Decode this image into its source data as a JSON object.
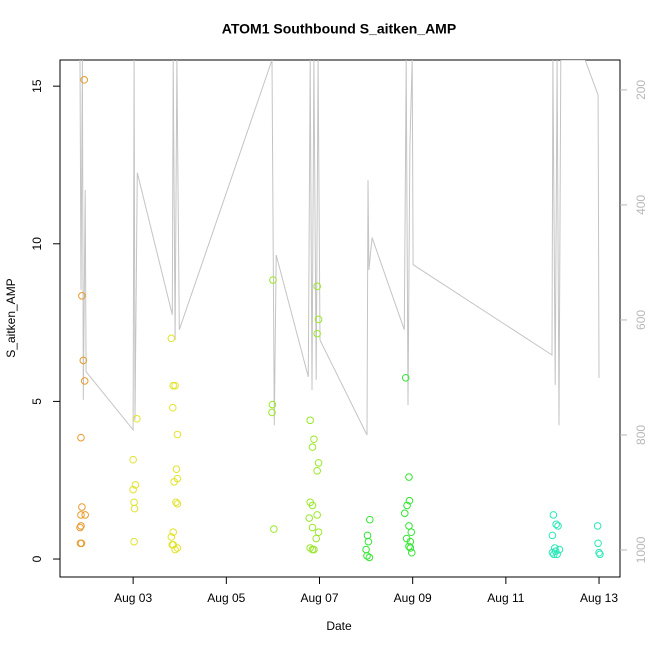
{
  "chart_data": {
    "type": "scatter",
    "title": "ATOM1 Southbound S_aitken_AMP",
    "xlabel": "Date",
    "ylabel": "S_aitken_AMP",
    "xlim": [
      1.43,
      13.45
    ],
    "ylim": [
      -0.57,
      15.83
    ],
    "y2lim": [
      1047,
      148
    ],
    "xticks": [
      {
        "value": 3,
        "label": "Aug 03"
      },
      {
        "value": 5,
        "label": "Aug 05"
      },
      {
        "value": 7,
        "label": "Aug 07"
      },
      {
        "value": 9,
        "label": "Aug 09"
      },
      {
        "value": 11,
        "label": "Aug 11"
      },
      {
        "value": 13,
        "label": "Aug 13"
      }
    ],
    "yticks": [
      0,
      5,
      10,
      15
    ],
    "y2ticks": [
      200,
      400,
      600,
      800,
      1000
    ],
    "series": [
      {
        "color": "#e89a2c",
        "x": [
          1.95,
          1.9,
          1.93,
          1.96,
          1.88,
          1.9,
          1.88,
          1.97,
          1.88,
          1.86,
          1.87,
          1.89
        ],
        "values": [
          15.2,
          8.35,
          6.3,
          5.65,
          3.85,
          1.65,
          1.4,
          1.4,
          1.05,
          1.0,
          0.5,
          0.5
        ]
      },
      {
        "color": "#e3e32a",
        "x": [
          3.0,
          3.05,
          3.0,
          3.02,
          3.03,
          3.02,
          3.08,
          3.82,
          3.86,
          3.9,
          3.85,
          3.95,
          3.93,
          3.95,
          3.88,
          3.92,
          3.95,
          3.86,
          3.82,
          3.86,
          3.95,
          3.9,
          3.84
        ],
        "values": [
          3.15,
          2.35,
          2.2,
          1.8,
          1.6,
          0.55,
          4.45,
          7.0,
          5.5,
          5.5,
          4.8,
          3.95,
          2.85,
          2.55,
          2.45,
          1.8,
          1.75,
          0.85,
          0.7,
          0.45,
          0.35,
          0.3,
          0.45
        ]
      },
      {
        "color": "#9ae82a",
        "x": [
          6.0,
          5.99,
          5.98,
          6.02,
          6.95,
          6.98,
          6.95,
          6.8,
          6.88,
          6.85,
          6.98,
          6.95,
          6.8,
          6.85,
          6.95,
          6.78,
          6.85,
          6.98,
          6.93,
          6.8,
          6.85,
          6.88
        ],
        "values": [
          8.85,
          4.9,
          4.65,
          0.95,
          8.65,
          7.6,
          7.15,
          4.4,
          3.8,
          3.55,
          3.05,
          2.8,
          1.8,
          1.7,
          1.4,
          1.3,
          1.0,
          0.85,
          0.65,
          0.35,
          0.3,
          0.3
        ]
      },
      {
        "color": "#33e633",
        "x": [
          8.03,
          8.08,
          8.05,
          8.0,
          8.02,
          8.07,
          8.85,
          8.92,
          8.93,
          8.88,
          8.83,
          8.92,
          8.97,
          8.87,
          8.95,
          8.92,
          8.95,
          8.98
        ],
        "values": [
          0.75,
          1.25,
          0.55,
          0.3,
          0.1,
          0.05,
          5.75,
          2.6,
          1.85,
          1.7,
          1.45,
          1.05,
          0.85,
          0.65,
          0.55,
          0.4,
          0.35,
          0.2
        ]
      },
      {
        "color": "#2ae8b8",
        "x": [
          12.02,
          12.08,
          12.12,
          12.0,
          12.05,
          12.0,
          12.03,
          12.1,
          12.15,
          12.07,
          12.97,
          12.98,
          13.0,
          13.02
        ],
        "values": [
          1.4,
          1.1,
          1.05,
          0.75,
          0.35,
          0.2,
          0.15,
          0.15,
          0.3,
          0.25,
          1.05,
          0.5,
          0.2,
          0.15
        ]
      },
      {
        "type": "line",
        "axis": "y2",
        "color": "#c4c4c4",
        "x": [
          1.86,
          1.88,
          1.91,
          1.93,
          1.97,
          1.99,
          3.0,
          3.02,
          3.04,
          3.09,
          3.84,
          3.86,
          3.9,
          3.94,
          3.99,
          5.98,
          6.03,
          6.07,
          6.76,
          6.8,
          6.84,
          6.88,
          6.93,
          6.97,
          7.01,
          8.02,
          8.04,
          8.06,
          8.13,
          8.82,
          8.86,
          8.9,
          8.94,
          8.99,
          9.01,
          11.99,
          12.01,
          12.06,
          12.1,
          12.14,
          12.18,
          12.7,
          12.98,
          13.0
        ],
        "values": [
          148,
          548,
          148,
          739,
          374,
          690,
          791,
          148,
          774,
          344,
          591,
          148,
          635,
          148,
          617,
          148,
          783,
          487,
          699,
          148,
          722,
          148,
          704,
          148,
          635,
          800,
          357,
          513,
          457,
          617,
          148,
          748,
          296,
          148,
          504,
          661,
          148,
          713,
          148,
          783,
          148,
          148,
          209,
          701
        ]
      }
    ]
  }
}
